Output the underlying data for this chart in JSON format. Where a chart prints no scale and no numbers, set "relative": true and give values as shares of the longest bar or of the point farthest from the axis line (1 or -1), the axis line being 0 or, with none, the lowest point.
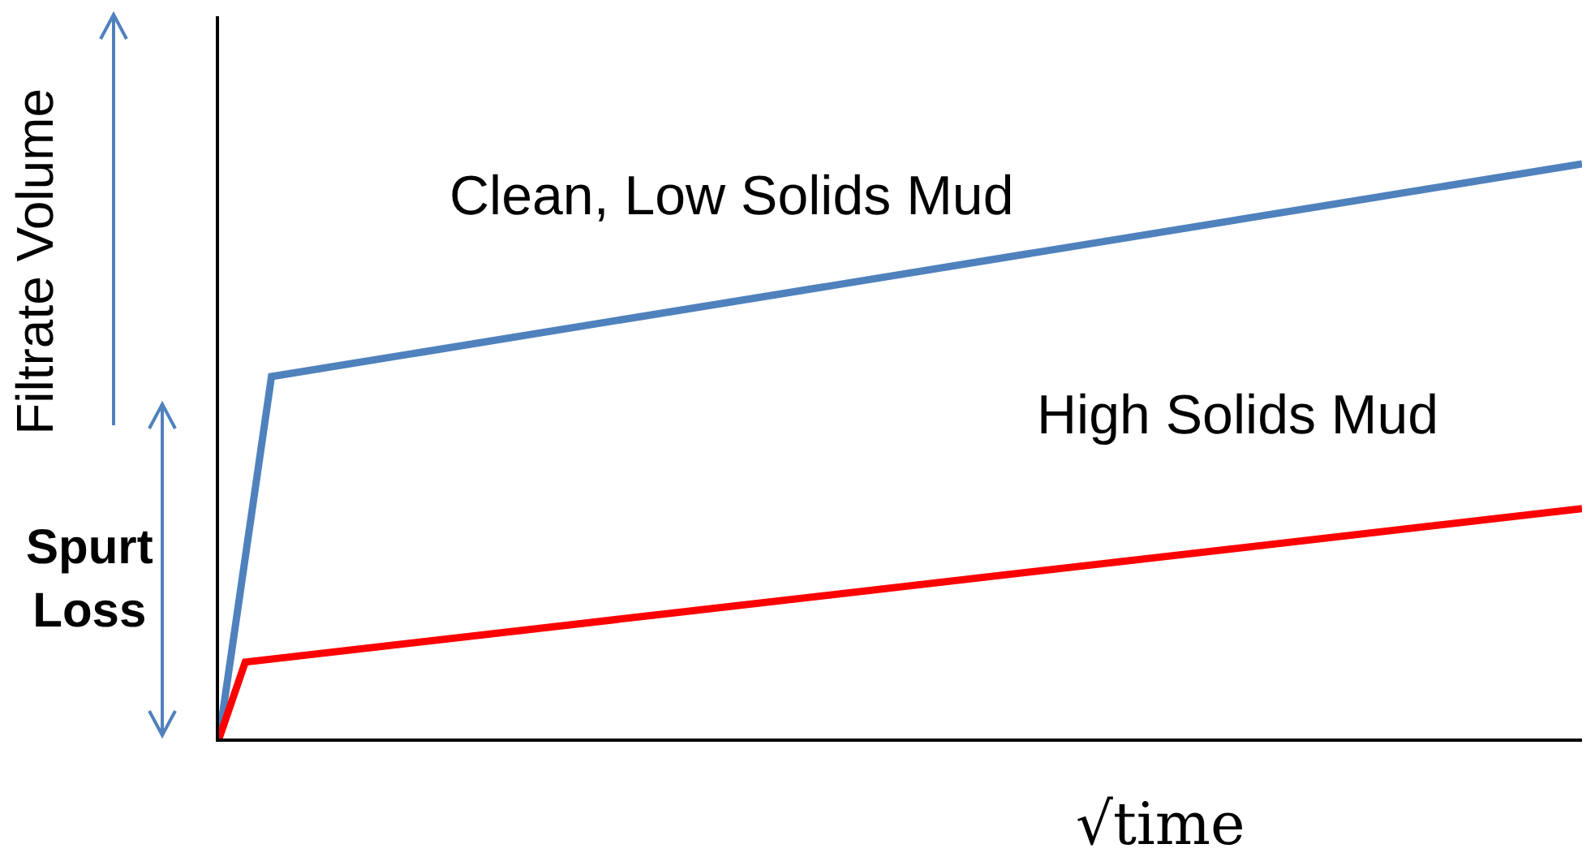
{
  "chart_data": {
    "type": "line",
    "relative": true,
    "ylabel": "Filtrate Volume",
    "xlabel": "√time",
    "annotations": [
      "Spurt Loss"
    ],
    "grid": false,
    "legend": false,
    "marker": "none",
    "line_style": "solid",
    "categories": [
      null,
      null,
      null,
      null,
      null,
      null,
      null,
      null,
      null,
      null,
      null,
      null,
      null,
      null,
      null,
      null,
      null,
      null,
      null,
      null,
      null,
      null,
      null,
      null,
      null,
      null,
      null,
      null,
      null,
      null,
      null,
      null,
      null,
      null,
      null,
      null,
      null,
      null,
      null,
      null,
      null,
      null,
      null,
      null,
      null,
      null,
      null,
      null,
      null,
      null,
      null,
      null,
      null
    ],
    "series": [
      {
        "name": "Clean, Low Solids Mud",
        "color": "#4f81bd",
        "values": [
          0,
          null,
          0.63,
          null,
          null,
          null,
          null,
          null,
          null,
          null,
          null,
          null,
          null,
          null,
          null,
          null,
          null,
          null,
          null,
          null,
          null,
          null,
          null,
          null,
          null,
          null,
          null,
          null,
          null,
          null,
          null,
          null,
          null,
          null,
          null,
          null,
          null,
          null,
          null,
          null,
          null,
          null,
          null,
          null,
          null,
          null,
          null,
          null,
          null,
          null,
          null,
          null,
          1
        ]
      },
      {
        "name": "High Solids Mud",
        "color": "#ff0000",
        "values": [
          0,
          0.133,
          null,
          null,
          null,
          null,
          null,
          null,
          null,
          null,
          null,
          null,
          null,
          null,
          null,
          null,
          null,
          null,
          null,
          null,
          null,
          null,
          null,
          null,
          null,
          null,
          null,
          null,
          null,
          null,
          null,
          null,
          null,
          null,
          null,
          null,
          null,
          null,
          null,
          null,
          null,
          null,
          null,
          null,
          null,
          null,
          null,
          null,
          null,
          null,
          null,
          null,
          0.4
        ]
      }
    ]
  }
}
